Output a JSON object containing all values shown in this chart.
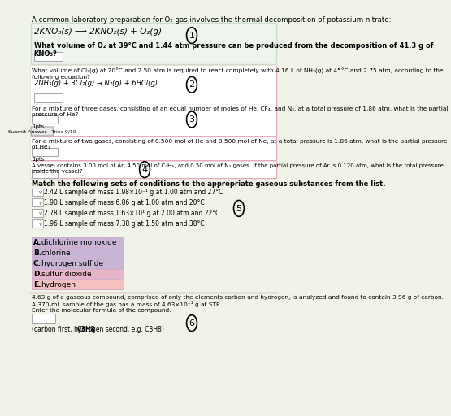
{
  "bg_color": "#f0f4e8",
  "title_text": "A common laboratory preparation for O₂ gas involves the thermal decomposition of potassium nitrate:",
  "equation1": "2KNO₃(s) ⟶ 2KNO₂(s) + O₂(g)",
  "circle1": "1",
  "q1_text": "What volume of O₂ at 39°C and 1.44 atm pressure can be produced from the decomposition of 41.3 g of KNO₃?",
  "q2_header": "What volume of Cl₂(g) at 20°C and 2.50 atm is required to react completely with 4.16 L of NH₃(g) at 45°C and 2.75 atm, according to the following equation?",
  "equation2": "2NH₃(g) + 3Cl₂(g) → N₂(g) + 6HCl(g)",
  "circle2": "2",
  "q3_text": "For a mixture of three gases, consisting of an equal number of moles of He, CF₄, and N₂, at a total pressure of 1.86 atm, what is the partial pressure of He?",
  "q3_sub": "1pts\nSubmit Answer   Tries 0/10",
  "circle3": "3",
  "q4_text": "For a mixture of two gases, consisting of 0.500 mol of He and 0.500 mol of Ne, at a total pressure is 1.86 atm, what is the partial pressure of He?",
  "q4_sub": "1pts",
  "q5_text": "A vessel contains 3.00 mol of Ar, 4.50 mol of C₂H₆, and 0.50 mol of N₂ gases. If the partial pressure of Ar is 0.120 atm, what is the total pressure inside the vessel?",
  "circle4": "4",
  "match_header": "Match the following sets of conditions to the appropriate gaseous substances from the list.",
  "match_items": [
    "2.42 L sample of mass 1.98×10⁻¹ g at 1.00 atm and 27°C",
    "1.90 L sample of mass 6.86 g at 1.00 atm and 20°C",
    "2.78 L sample of mass 1.63×10¹ g at 2.00 atm and 22°C",
    "1.96 L sample of mass 7.38 g at 1.50 atm and 38°C"
  ],
  "circle5": "5",
  "options": [
    [
      "A.",
      "dichlorine monoxide",
      "#c8b4d4"
    ],
    [
      "B.",
      "chlorine",
      "#c8b4d4"
    ],
    [
      "C.",
      "hydrogen sulfide",
      "#c8b4d4"
    ],
    [
      "D.",
      "sulfur dioxide",
      "#e8b4c8"
    ],
    [
      "E.",
      "hydrogen",
      "#f4c0c0"
    ]
  ],
  "q6_text1": "4.63 g of a gaseous compound, comprised of only the elements carbon and hydrogen, is analyzed and found to contain 3.96 g of carbon.",
  "q6_text2": "A 370-mL sample of the gas has a mass of 4.63×10⁻¹ g at STP.",
  "q6_text3": "Enter the molecular formula of the compound.",
  "circle6": "6",
  "hint_text": "(carbon first, hydrogen second, e.g. C3H8)"
}
